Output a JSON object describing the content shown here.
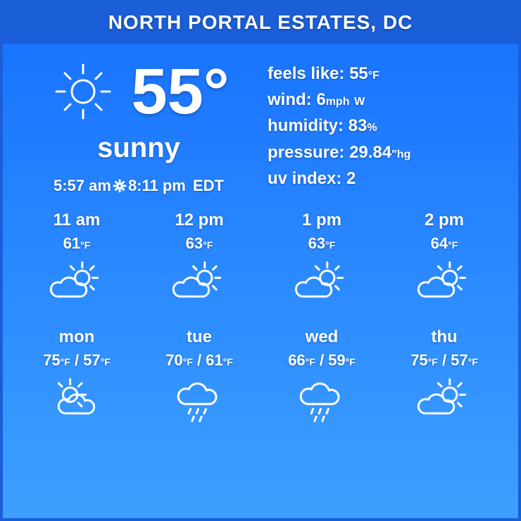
{
  "header": {
    "location": "NORTH PORTAL ESTATES, DC"
  },
  "current": {
    "temp": "55°",
    "condition": "sunny",
    "sunrise": "5:57 am",
    "sunset": "8:11 pm",
    "tz": "EDT",
    "icon": "sunny"
  },
  "details": {
    "feels_label": "feels like:",
    "feels_value": "55",
    "feels_unit": "°F",
    "wind_label": "wind:",
    "wind_value": "6",
    "wind_unit": "mph",
    "wind_dir": "W",
    "humidity_label": "humidity:",
    "humidity_value": "83",
    "humidity_unit": "%",
    "pressure_label": "pressure:",
    "pressure_value": "29.84",
    "pressure_unit": "\"hg",
    "uv_label": "uv index:",
    "uv_value": "2"
  },
  "hourly": [
    {
      "time": "11 am",
      "temp": "61",
      "unit": "°F",
      "icon": "partly"
    },
    {
      "time": "12 pm",
      "temp": "63",
      "unit": "°F",
      "icon": "partly"
    },
    {
      "time": "1 pm",
      "temp": "63",
      "unit": "°F",
      "icon": "partly"
    },
    {
      "time": "2 pm",
      "temp": "64",
      "unit": "°F",
      "icon": "partly"
    }
  ],
  "daily": [
    {
      "day": "mon",
      "hi": "75",
      "lo": "57",
      "unit": "°F",
      "icon": "mostly-sunny"
    },
    {
      "day": "tue",
      "hi": "70",
      "lo": "61",
      "unit": "°F",
      "icon": "rain"
    },
    {
      "day": "wed",
      "hi": "66",
      "lo": "59",
      "unit": "°F",
      "icon": "rain"
    },
    {
      "day": "thu",
      "hi": "75",
      "lo": "57",
      "unit": "°F",
      "icon": "partly"
    }
  ],
  "colors": {
    "text": "#ffffff",
    "header_bg": "#1a5ed8",
    "grad_top": "#1670ff",
    "grad_bot": "#3da0ff"
  }
}
